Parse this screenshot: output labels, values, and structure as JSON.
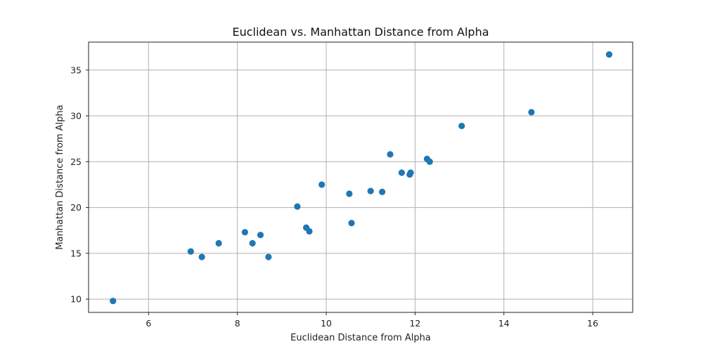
{
  "chart_data": {
    "type": "scatter",
    "title": "Euclidean vs. Manhattan Distance from Alpha",
    "xlabel": "Euclidean Distance from Alpha",
    "ylabel": "Manhattan Distance from Alpha",
    "xlim": [
      4.65,
      16.9
    ],
    "ylim": [
      8.55,
      38.05
    ],
    "xticks": [
      6,
      8,
      10,
      12,
      14,
      16
    ],
    "yticks": [
      10,
      15,
      20,
      25,
      30,
      35
    ],
    "grid": true,
    "color": "#1f77b4",
    "points": [
      {
        "x": 5.2,
        "y": 9.8
      },
      {
        "x": 6.95,
        "y": 15.2
      },
      {
        "x": 7.2,
        "y": 14.6
      },
      {
        "x": 7.58,
        "y": 16.1
      },
      {
        "x": 8.17,
        "y": 17.3
      },
      {
        "x": 8.34,
        "y": 16.1
      },
      {
        "x": 8.52,
        "y": 17.0
      },
      {
        "x": 8.7,
        "y": 14.6
      },
      {
        "x": 9.35,
        "y": 20.1
      },
      {
        "x": 9.55,
        "y": 17.8
      },
      {
        "x": 9.62,
        "y": 17.4
      },
      {
        "x": 9.9,
        "y": 22.5
      },
      {
        "x": 10.52,
        "y": 21.5
      },
      {
        "x": 10.57,
        "y": 18.3
      },
      {
        "x": 11.0,
        "y": 21.8
      },
      {
        "x": 11.26,
        "y": 21.7
      },
      {
        "x": 11.44,
        "y": 25.8
      },
      {
        "x": 11.7,
        "y": 23.8
      },
      {
        "x": 11.88,
        "y": 23.6
      },
      {
        "x": 11.9,
        "y": 23.8
      },
      {
        "x": 12.27,
        "y": 25.3
      },
      {
        "x": 12.33,
        "y": 25.0
      },
      {
        "x": 13.05,
        "y": 28.9
      },
      {
        "x": 14.62,
        "y": 30.4
      },
      {
        "x": 16.37,
        "y": 36.7
      }
    ]
  }
}
